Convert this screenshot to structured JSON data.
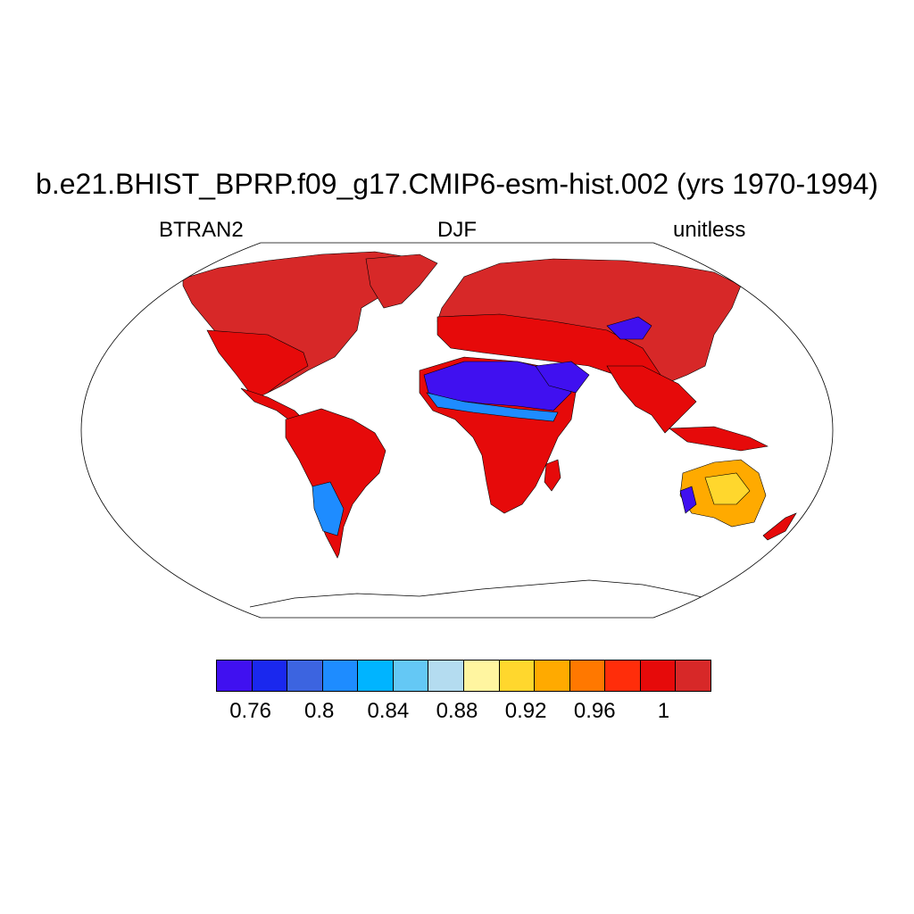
{
  "figure": {
    "title": "b.e21.BHIST_BPRP.f09_g17.CMIP6-esm-hist.002 (yrs 1970-1994)",
    "left_label": "BTRAN2",
    "center_label": "DJF",
    "right_label": "unitless"
  },
  "colorbar": {
    "colors": [
      "#4010f0",
      "#1a28ee",
      "#3c64e0",
      "#1e8cff",
      "#00b4ff",
      "#64c8f5",
      "#b4dcf0",
      "#fff5a0",
      "#ffd72d",
      "#ffaa00",
      "#ff7800",
      "#ff2d0a",
      "#e60a0a",
      "#d72828"
    ],
    "tick_labels": [
      "0.76",
      "0.8",
      "0.84",
      "0.88",
      "0.92",
      "0.96",
      "1"
    ]
  },
  "map_colors": {
    "high": "#e60a0a",
    "very_high": "#d72828",
    "dry_low": "#4010f0",
    "dry_mid": "#1e8cff",
    "mid_orange": "#ffaa00",
    "mid_yellow": "#ffd72d"
  }
}
